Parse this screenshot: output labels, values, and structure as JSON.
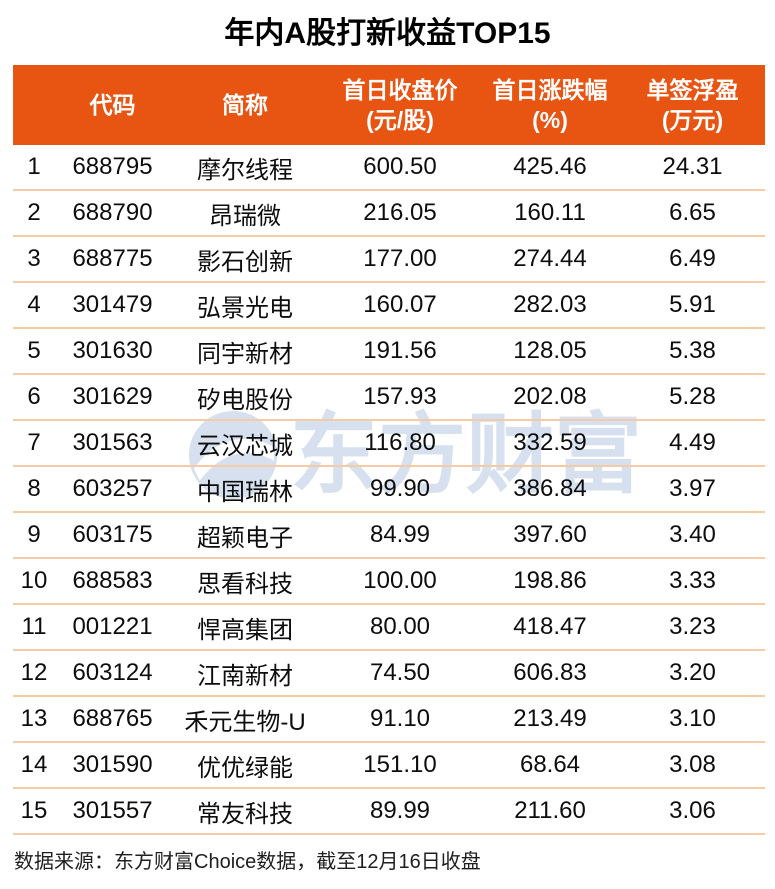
{
  "title": "年内A股打新收益TOP15",
  "table": {
    "columns": [
      {
        "label": "",
        "sub": ""
      },
      {
        "label": "代码",
        "sub": ""
      },
      {
        "label": "简称",
        "sub": ""
      },
      {
        "label": "首日收盘价",
        "sub": "(元/股)"
      },
      {
        "label": "首日涨跌幅",
        "sub": "(%)"
      },
      {
        "label": "单签浮盈",
        "sub": "(万元)"
      }
    ],
    "rows": [
      {
        "rank": "1",
        "code": "688795",
        "name": "摩尔线程",
        "close": "600.50",
        "change": "425.46",
        "profit": "24.31"
      },
      {
        "rank": "2",
        "code": "688790",
        "name": "昂瑞微",
        "close": "216.05",
        "change": "160.11",
        "profit": "6.65"
      },
      {
        "rank": "3",
        "code": "688775",
        "name": "影石创新",
        "close": "177.00",
        "change": "274.44",
        "profit": "6.49"
      },
      {
        "rank": "4",
        "code": "301479",
        "name": "弘景光电",
        "close": "160.07",
        "change": "282.03",
        "profit": "5.91"
      },
      {
        "rank": "5",
        "code": "301630",
        "name": "同宇新材",
        "close": "191.56",
        "change": "128.05",
        "profit": "5.38"
      },
      {
        "rank": "6",
        "code": "301629",
        "name": "矽电股份",
        "close": "157.93",
        "change": "202.08",
        "profit": "5.28"
      },
      {
        "rank": "7",
        "code": "301563",
        "name": "云汉芯城",
        "close": "116.80",
        "change": "332.59",
        "profit": "4.49"
      },
      {
        "rank": "8",
        "code": "603257",
        "name": "中国瑞林",
        "close": "99.90",
        "change": "386.84",
        "profit": "3.97"
      },
      {
        "rank": "9",
        "code": "603175",
        "name": "超颖电子",
        "close": "84.99",
        "change": "397.60",
        "profit": "3.40"
      },
      {
        "rank": "10",
        "code": "688583",
        "name": "思看科技",
        "close": "100.00",
        "change": "198.86",
        "profit": "3.33"
      },
      {
        "rank": "11",
        "code": "001221",
        "name": "悍高集团",
        "close": "80.00",
        "change": "418.47",
        "profit": "3.23"
      },
      {
        "rank": "12",
        "code": "603124",
        "name": "江南新材",
        "close": "74.50",
        "change": "606.83",
        "profit": "3.20"
      },
      {
        "rank": "13",
        "code": "688765",
        "name": "禾元生物-U",
        "close": "91.10",
        "change": "213.49",
        "profit": "3.10"
      },
      {
        "rank": "14",
        "code": "301590",
        "name": "优优绿能",
        "close": "151.10",
        "change": "68.64",
        "profit": "3.08"
      },
      {
        "rank": "15",
        "code": "301557",
        "name": "常友科技",
        "close": "89.99",
        "change": "211.60",
        "profit": "3.06"
      }
    ]
  },
  "footer": {
    "source": "数据来源：东方财富Choice数据，截至12月16日收盘"
  },
  "watermark": {
    "text": "东方财富"
  },
  "colors": {
    "header_bg": "#E85412",
    "header_text": "#FFFFFF",
    "separator": "#F5CBA6",
    "title_text": "#000000",
    "body_text": "#0D0D0D",
    "footer_text": "#1F1F1F",
    "watermark": "#D6E0EE"
  },
  "chart_data": {
    "type": "table",
    "title": "年内A股打新收益TOP15",
    "columns": [
      "",
      "代码",
      "简称",
      "首日收盘价(元/股)",
      "首日涨跌幅(%)",
      "单签浮盈(万元)"
    ],
    "rows": [
      [
        1,
        "688795",
        "摩尔线程",
        600.5,
        425.46,
        24.31
      ],
      [
        2,
        "688790",
        "昂瑞微",
        216.05,
        160.11,
        6.65
      ],
      [
        3,
        "688775",
        "影石创新",
        177.0,
        274.44,
        6.49
      ],
      [
        4,
        "301479",
        "弘景光电",
        160.07,
        282.03,
        5.91
      ],
      [
        5,
        "301630",
        "同宇新材",
        191.56,
        128.05,
        5.38
      ],
      [
        6,
        "301629",
        "矽电股份",
        157.93,
        202.08,
        5.28
      ],
      [
        7,
        "301563",
        "云汉芯城",
        116.8,
        332.59,
        4.49
      ],
      [
        8,
        "603257",
        "中国瑞林",
        99.9,
        386.84,
        3.97
      ],
      [
        9,
        "603175",
        "超颖电子",
        84.99,
        397.6,
        3.4
      ],
      [
        10,
        "688583",
        "思看科技",
        100.0,
        198.86,
        3.33
      ],
      [
        11,
        "001221",
        "悍高集团",
        80.0,
        418.47,
        3.23
      ],
      [
        12,
        "603124",
        "江南新材",
        74.5,
        606.83,
        3.2
      ],
      [
        13,
        "688765",
        "禾元生物-U",
        91.1,
        213.49,
        3.1
      ],
      [
        14,
        "301590",
        "优优绿能",
        151.1,
        68.64,
        3.08
      ],
      [
        15,
        "301557",
        "常友科技",
        89.99,
        211.6,
        3.06
      ]
    ],
    "source_note": "数据来源：东方财富Choice数据，截至12月16日收盘"
  }
}
